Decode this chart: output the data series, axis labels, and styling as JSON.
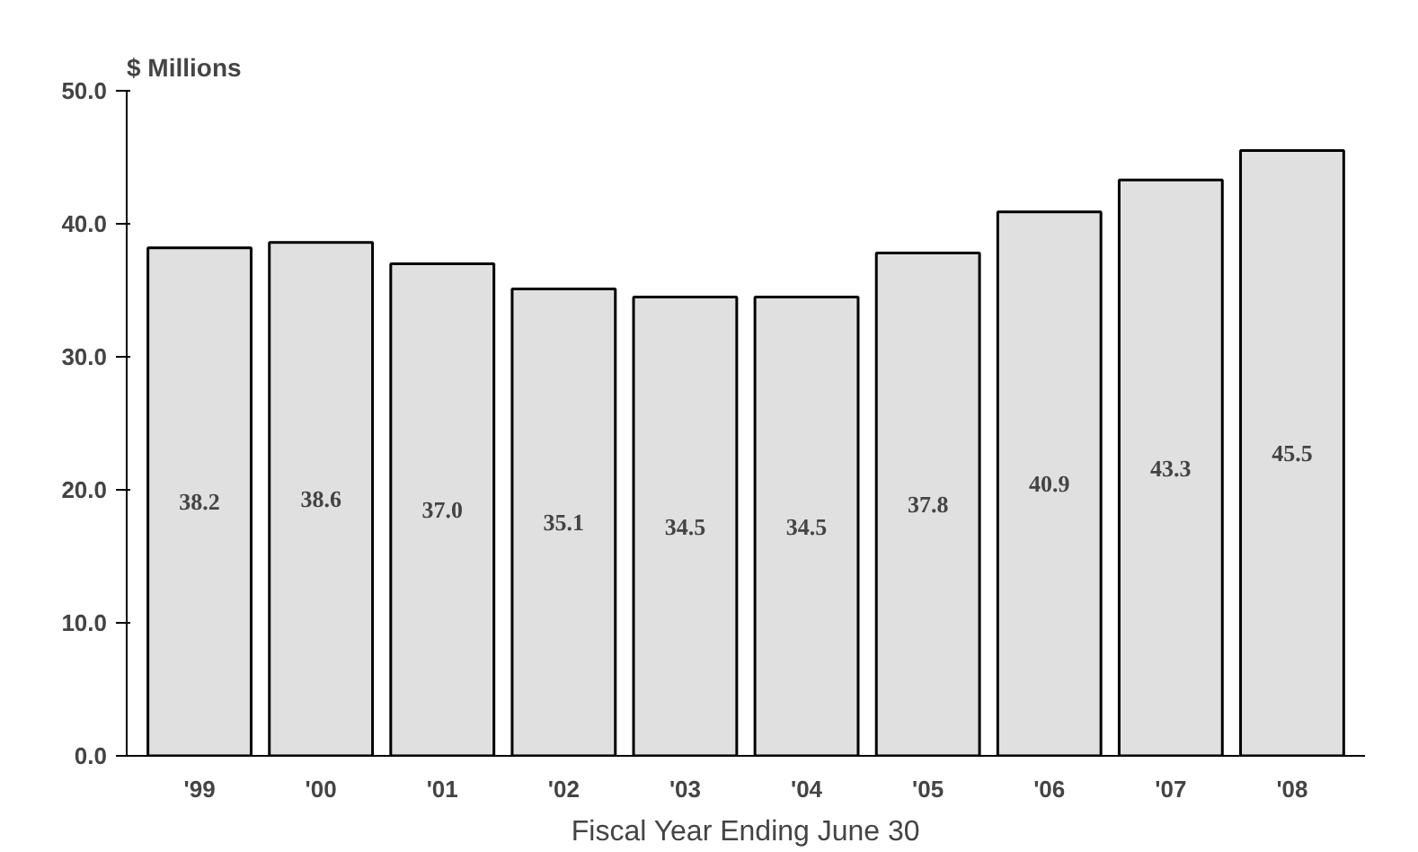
{
  "chart_data": {
    "type": "bar",
    "ylabel": "$ Millions",
    "xlabel": "Fiscal Year Ending June 30",
    "categories": [
      "'99",
      "'00",
      "'01",
      "'02",
      "'03",
      "'04",
      "'05",
      "'06",
      "'07",
      "'08"
    ],
    "values": [
      38.2,
      38.6,
      37.0,
      35.1,
      34.5,
      34.5,
      37.8,
      40.9,
      43.3,
      45.5
    ],
    "value_labels": [
      "38.2",
      "38.6",
      "37.0",
      "35.1",
      "34.5",
      "34.5",
      "37.8",
      "40.9",
      "43.3",
      "45.5"
    ],
    "color": "#e0e0e0",
    "ylim": [
      0,
      50
    ],
    "yticks": [
      {
        "value": 0,
        "label": "0.0"
      },
      {
        "value": 10,
        "label": "10.0"
      },
      {
        "value": 20,
        "label": "20.0"
      },
      {
        "value": 30,
        "label": "30.0"
      },
      {
        "value": 40,
        "label": "40.0"
      },
      {
        "value": 50,
        "label": "50.0"
      }
    ]
  }
}
